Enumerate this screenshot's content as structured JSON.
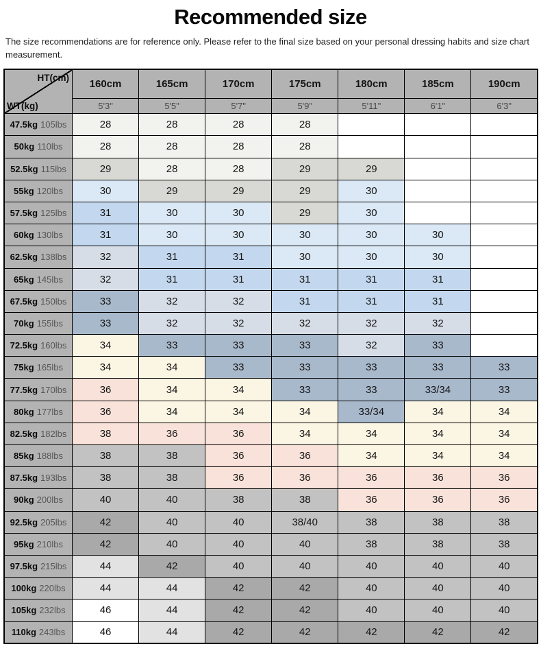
{
  "title": "Recommended size",
  "subtitle": "The size recommendations are for reference only. Please refer to the final size based on your personal dressing habits and size chart measurement.",
  "colors": {
    "header": "#b3b3b3",
    "white": "#ffffff",
    "offwhite": "#f2f2ee",
    "gray29": "#d8d8d4",
    "blue30": "#dbe8f5",
    "blue31": "#c3d8ee",
    "blue32": "#d7dde7",
    "blue33": "#a9b9cc",
    "cream": "#fbf5e4",
    "pink": "#f8e2d9",
    "grayMid": "#c2c2c2",
    "grayDark": "#a9a9a9",
    "grayLight": "#e2e2e2"
  },
  "chart_data": {
    "type": "table",
    "title": "Recommended size",
    "corner": {
      "top_label": "HT(cm)",
      "bottom_label": "WT(kg)"
    },
    "height_headers_cm": [
      "160cm",
      "165cm",
      "170cm",
      "175cm",
      "180cm",
      "185cm",
      "190cm"
    ],
    "height_headers_ft": [
      "5'3\"",
      "5'5\"",
      "5'7\"",
      "5'9\"",
      "5'11\"",
      "6'1\"",
      "6'3\""
    ],
    "rows": [
      {
        "kg": "47.5kg",
        "lbs": "105lbs",
        "cells": [
          {
            "v": "28",
            "c": "offwhite"
          },
          {
            "v": "28",
            "c": "offwhite"
          },
          {
            "v": "28",
            "c": "offwhite"
          },
          {
            "v": "28",
            "c": "offwhite"
          },
          {
            "v": "",
            "c": "white"
          },
          {
            "v": "",
            "c": "white"
          },
          {
            "v": "",
            "c": "white"
          }
        ]
      },
      {
        "kg": "50kg",
        "lbs": "110lbs",
        "cells": [
          {
            "v": "28",
            "c": "offwhite"
          },
          {
            "v": "28",
            "c": "offwhite"
          },
          {
            "v": "28",
            "c": "offwhite"
          },
          {
            "v": "28",
            "c": "offwhite"
          },
          {
            "v": "",
            "c": "white"
          },
          {
            "v": "",
            "c": "white"
          },
          {
            "v": "",
            "c": "white"
          }
        ]
      },
      {
        "kg": "52.5kg",
        "lbs": "115lbs",
        "cells": [
          {
            "v": "29",
            "c": "gray29"
          },
          {
            "v": "28",
            "c": "offwhite"
          },
          {
            "v": "28",
            "c": "offwhite"
          },
          {
            "v": "29",
            "c": "gray29"
          },
          {
            "v": "29",
            "c": "gray29"
          },
          {
            "v": "",
            "c": "white"
          },
          {
            "v": "",
            "c": "white"
          }
        ]
      },
      {
        "kg": "55kg",
        "lbs": "120lbs",
        "cells": [
          {
            "v": "30",
            "c": "blue30"
          },
          {
            "v": "29",
            "c": "gray29"
          },
          {
            "v": "29",
            "c": "gray29"
          },
          {
            "v": "29",
            "c": "gray29"
          },
          {
            "v": "30",
            "c": "blue30"
          },
          {
            "v": "",
            "c": "white"
          },
          {
            "v": "",
            "c": "white"
          }
        ]
      },
      {
        "kg": "57.5kg",
        "lbs": "125lbs",
        "cells": [
          {
            "v": "31",
            "c": "blue31"
          },
          {
            "v": "30",
            "c": "blue30"
          },
          {
            "v": "30",
            "c": "blue30"
          },
          {
            "v": "29",
            "c": "gray29"
          },
          {
            "v": "30",
            "c": "blue30"
          },
          {
            "v": "",
            "c": "white"
          },
          {
            "v": "",
            "c": "white"
          }
        ]
      },
      {
        "kg": "60kg",
        "lbs": "130lbs",
        "cells": [
          {
            "v": "31",
            "c": "blue31"
          },
          {
            "v": "30",
            "c": "blue30"
          },
          {
            "v": "30",
            "c": "blue30"
          },
          {
            "v": "30",
            "c": "blue30"
          },
          {
            "v": "30",
            "c": "blue30"
          },
          {
            "v": "30",
            "c": "blue30"
          },
          {
            "v": "",
            "c": "white"
          }
        ]
      },
      {
        "kg": "62.5kg",
        "lbs": "138lbs",
        "cells": [
          {
            "v": "32",
            "c": "blue32"
          },
          {
            "v": "31",
            "c": "blue31"
          },
          {
            "v": "31",
            "c": "blue31"
          },
          {
            "v": "30",
            "c": "blue30"
          },
          {
            "v": "30",
            "c": "blue30"
          },
          {
            "v": "30",
            "c": "blue30"
          },
          {
            "v": "",
            "c": "white"
          }
        ]
      },
      {
        "kg": "65kg",
        "lbs": "145lbs",
        "cells": [
          {
            "v": "32",
            "c": "blue32"
          },
          {
            "v": "31",
            "c": "blue31"
          },
          {
            "v": "31",
            "c": "blue31"
          },
          {
            "v": "31",
            "c": "blue31"
          },
          {
            "v": "31",
            "c": "blue31"
          },
          {
            "v": "31",
            "c": "blue31"
          },
          {
            "v": "",
            "c": "white"
          }
        ]
      },
      {
        "kg": "67.5kg",
        "lbs": "150lbs",
        "cells": [
          {
            "v": "33",
            "c": "blue33"
          },
          {
            "v": "32",
            "c": "blue32"
          },
          {
            "v": "32",
            "c": "blue32"
          },
          {
            "v": "31",
            "c": "blue31"
          },
          {
            "v": "31",
            "c": "blue31"
          },
          {
            "v": "31",
            "c": "blue31"
          },
          {
            "v": "",
            "c": "white"
          }
        ]
      },
      {
        "kg": "70kg",
        "lbs": "155lbs",
        "cells": [
          {
            "v": "33",
            "c": "blue33"
          },
          {
            "v": "32",
            "c": "blue32"
          },
          {
            "v": "32",
            "c": "blue32"
          },
          {
            "v": "32",
            "c": "blue32"
          },
          {
            "v": "32",
            "c": "blue32"
          },
          {
            "v": "32",
            "c": "blue32"
          },
          {
            "v": "",
            "c": "white"
          }
        ]
      },
      {
        "kg": "72.5kg",
        "lbs": "160lbs",
        "cells": [
          {
            "v": "34",
            "c": "cream"
          },
          {
            "v": "33",
            "c": "blue33"
          },
          {
            "v": "33",
            "c": "blue33"
          },
          {
            "v": "33",
            "c": "blue33"
          },
          {
            "v": "32",
            "c": "blue32"
          },
          {
            "v": "33",
            "c": "blue33"
          },
          {
            "v": "",
            "c": "white"
          }
        ]
      },
      {
        "kg": "75kg",
        "lbs": "165lbs",
        "cells": [
          {
            "v": "34",
            "c": "cream"
          },
          {
            "v": "34",
            "c": "cream"
          },
          {
            "v": "33",
            "c": "blue33"
          },
          {
            "v": "33",
            "c": "blue33"
          },
          {
            "v": "33",
            "c": "blue33"
          },
          {
            "v": "33",
            "c": "blue33"
          },
          {
            "v": "33",
            "c": "blue33"
          }
        ]
      },
      {
        "kg": "77.5kg",
        "lbs": "170lbs",
        "cells": [
          {
            "v": "36",
            "c": "pink"
          },
          {
            "v": "34",
            "c": "cream"
          },
          {
            "v": "34",
            "c": "cream"
          },
          {
            "v": "33",
            "c": "blue33"
          },
          {
            "v": "33",
            "c": "blue33"
          },
          {
            "v": "33/34",
            "c": "blue33"
          },
          {
            "v": "33",
            "c": "blue33"
          }
        ]
      },
      {
        "kg": "80kg",
        "lbs": "177lbs",
        "cells": [
          {
            "v": "36",
            "c": "pink"
          },
          {
            "v": "34",
            "c": "cream"
          },
          {
            "v": "34",
            "c": "cream"
          },
          {
            "v": "34",
            "c": "cream"
          },
          {
            "v": "33/34",
            "c": "blue33"
          },
          {
            "v": "34",
            "c": "cream"
          },
          {
            "v": "34",
            "c": "cream"
          }
        ]
      },
      {
        "kg": "82.5kg",
        "lbs": "182lbs",
        "cells": [
          {
            "v": "38",
            "c": "pink"
          },
          {
            "v": "36",
            "c": "pink"
          },
          {
            "v": "36",
            "c": "pink"
          },
          {
            "v": "34",
            "c": "cream"
          },
          {
            "v": "34",
            "c": "cream"
          },
          {
            "v": "34",
            "c": "cream"
          },
          {
            "v": "34",
            "c": "cream"
          }
        ]
      },
      {
        "kg": "85kg",
        "lbs": "188lbs",
        "cells": [
          {
            "v": "38",
            "c": "grayMid"
          },
          {
            "v": "38",
            "c": "grayMid"
          },
          {
            "v": "36",
            "c": "pink"
          },
          {
            "v": "36",
            "c": "pink"
          },
          {
            "v": "34",
            "c": "cream"
          },
          {
            "v": "34",
            "c": "cream"
          },
          {
            "v": "34",
            "c": "cream"
          }
        ]
      },
      {
        "kg": "87.5kg",
        "lbs": "193lbs",
        "cells": [
          {
            "v": "38",
            "c": "grayMid"
          },
          {
            "v": "38",
            "c": "grayMid"
          },
          {
            "v": "36",
            "c": "pink"
          },
          {
            "v": "36",
            "c": "pink"
          },
          {
            "v": "36",
            "c": "pink"
          },
          {
            "v": "36",
            "c": "pink"
          },
          {
            "v": "36",
            "c": "pink"
          }
        ]
      },
      {
        "kg": "90kg",
        "lbs": "200lbs",
        "cells": [
          {
            "v": "40",
            "c": "grayMid"
          },
          {
            "v": "40",
            "c": "grayMid"
          },
          {
            "v": "38",
            "c": "grayMid"
          },
          {
            "v": "38",
            "c": "grayMid"
          },
          {
            "v": "36",
            "c": "pink"
          },
          {
            "v": "36",
            "c": "pink"
          },
          {
            "v": "36",
            "c": "pink"
          }
        ]
      },
      {
        "kg": "92.5kg",
        "lbs": "205lbs",
        "cells": [
          {
            "v": "42",
            "c": "grayDark"
          },
          {
            "v": "40",
            "c": "grayMid"
          },
          {
            "v": "40",
            "c": "grayMid"
          },
          {
            "v": "38/40",
            "c": "grayMid"
          },
          {
            "v": "38",
            "c": "grayMid"
          },
          {
            "v": "38",
            "c": "grayMid"
          },
          {
            "v": "38",
            "c": "grayMid"
          }
        ]
      },
      {
        "kg": "95kg",
        "lbs": "210lbs",
        "cells": [
          {
            "v": "42",
            "c": "grayDark"
          },
          {
            "v": "40",
            "c": "grayMid"
          },
          {
            "v": "40",
            "c": "grayMid"
          },
          {
            "v": "40",
            "c": "grayMid"
          },
          {
            "v": "38",
            "c": "grayMid"
          },
          {
            "v": "38",
            "c": "grayMid"
          },
          {
            "v": "38",
            "c": "grayMid"
          }
        ]
      },
      {
        "kg": "97.5kg",
        "lbs": "215lbs",
        "cells": [
          {
            "v": "44",
            "c": "grayLight"
          },
          {
            "v": "42",
            "c": "grayDark"
          },
          {
            "v": "40",
            "c": "grayMid"
          },
          {
            "v": "40",
            "c": "grayMid"
          },
          {
            "v": "40",
            "c": "grayMid"
          },
          {
            "v": "40",
            "c": "grayMid"
          },
          {
            "v": "40",
            "c": "grayMid"
          }
        ]
      },
      {
        "kg": "100kg",
        "lbs": "220lbs",
        "cells": [
          {
            "v": "44",
            "c": "grayLight"
          },
          {
            "v": "44",
            "c": "grayLight"
          },
          {
            "v": "42",
            "c": "grayDark"
          },
          {
            "v": "42",
            "c": "grayDark"
          },
          {
            "v": "40",
            "c": "grayMid"
          },
          {
            "v": "40",
            "c": "grayMid"
          },
          {
            "v": "40",
            "c": "grayMid"
          }
        ]
      },
      {
        "kg": "105kg",
        "lbs": "232lbs",
        "cells": [
          {
            "v": "46",
            "c": "white"
          },
          {
            "v": "44",
            "c": "grayLight"
          },
          {
            "v": "42",
            "c": "grayDark"
          },
          {
            "v": "42",
            "c": "grayDark"
          },
          {
            "v": "40",
            "c": "grayMid"
          },
          {
            "v": "40",
            "c": "grayMid"
          },
          {
            "v": "40",
            "c": "grayMid"
          }
        ]
      },
      {
        "kg": "110kg",
        "lbs": "243lbs",
        "cells": [
          {
            "v": "46",
            "c": "white"
          },
          {
            "v": "44",
            "c": "grayLight"
          },
          {
            "v": "42",
            "c": "grayDark"
          },
          {
            "v": "42",
            "c": "grayDark"
          },
          {
            "v": "42",
            "c": "grayDark"
          },
          {
            "v": "42",
            "c": "grayDark"
          },
          {
            "v": "42",
            "c": "grayDark"
          }
        ]
      }
    ]
  }
}
